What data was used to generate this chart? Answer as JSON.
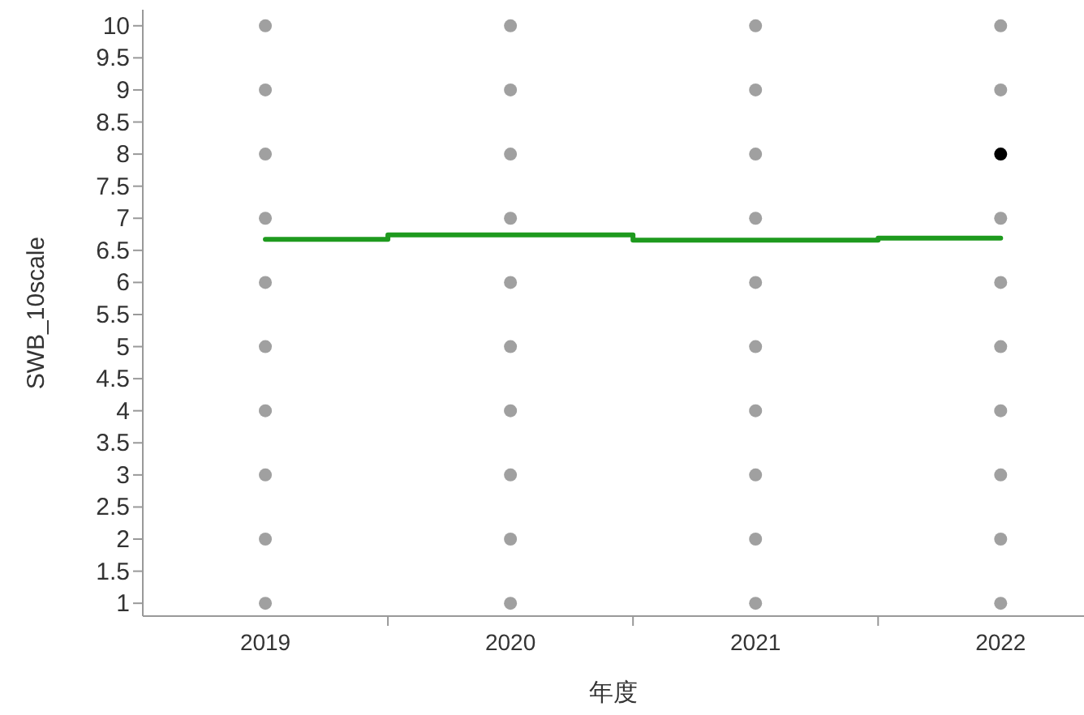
{
  "chart_data": {
    "type": "scatter",
    "xlabel": "年度",
    "ylabel": "SWB_10scale",
    "xlim": [
      2018.5,
      2022.34
    ],
    "xticks": [
      {
        "value": 2019,
        "label": "2019"
      },
      {
        "value": 2019.5,
        "label": null
      },
      {
        "value": 2020,
        "label": "2020"
      },
      {
        "value": 2020.5,
        "label": null
      },
      {
        "value": 2021,
        "label": "2021"
      },
      {
        "value": 2021.5,
        "label": null
      },
      {
        "value": 2022,
        "label": "2022"
      }
    ],
    "ylim": [
      0.8,
      10.25
    ],
    "yticks": [
      1,
      1.5,
      2,
      2.5,
      3,
      3.5,
      4,
      4.5,
      5,
      5.5,
      6,
      6.5,
      7,
      7.5,
      8,
      8.5,
      9,
      9.5,
      10
    ],
    "marker": "none",
    "series": [
      {
        "marker": "circle",
        "color": "#a0a0a0",
        "x": [
          2019,
          2019,
          2019,
          2019,
          2019,
          2019,
          2019,
          2019,
          2019,
          2019,
          2020,
          2020,
          2020,
          2020,
          2020,
          2020,
          2020,
          2020,
          2020,
          2020,
          2021,
          2021,
          2021,
          2021,
          2021,
          2021,
          2021,
          2021,
          2021,
          2021,
          2022,
          2022,
          2022,
          2022,
          2022,
          2022,
          2022,
          2022,
          2022
        ],
        "values": [
          1,
          2,
          3,
          4,
          5,
          6,
          7,
          8,
          9,
          10,
          1,
          2,
          3,
          4,
          5,
          6,
          7,
          8,
          9,
          10,
          1,
          2,
          3,
          4,
          5,
          6,
          7,
          8,
          9,
          10,
          1,
          2,
          3,
          4,
          5,
          6,
          7,
          9,
          10
        ]
      },
      {
        "marker": "circle",
        "color": "#000000",
        "x": [
          2022
        ],
        "values": [
          8
        ]
      },
      {
        "type": "step",
        "color": "#1e9a1e",
        "x": [
          2019,
          2020,
          2021,
          2022
        ],
        "values": [
          6.67,
          6.74,
          6.66,
          6.69
        ]
      }
    ]
  }
}
